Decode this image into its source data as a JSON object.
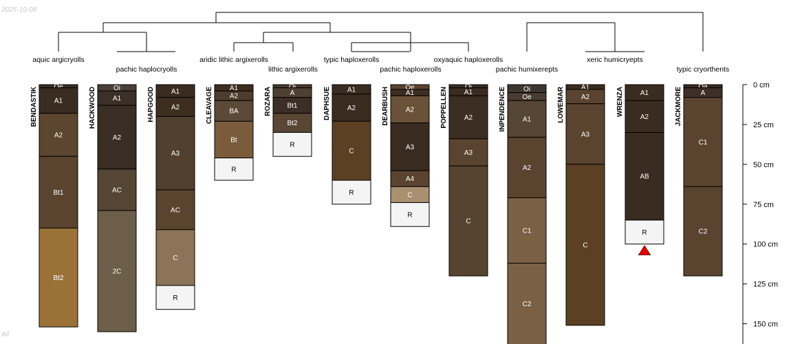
{
  "date_label": "2025-10-08",
  "corner_label": "All",
  "depth_axis": {
    "unit": "cm",
    "max_depth": 160,
    "ticks": [
      0,
      25,
      50,
      75,
      100,
      125,
      150
    ],
    "tick_labels": [
      "0 cm",
      "25 cm",
      "50 cm",
      "75 cm",
      "100 cm",
      "125 cm",
      "150 cm"
    ]
  },
  "taxa": [
    "aquic argicryolls",
    "pachic haplocryolls",
    "aridic lithic argixerolls",
    "lithic argixerolls",
    "typic haploxerolls",
    "pachic haploxerolls",
    "oxyaquic haploxerolls",
    "pachic humixerepts",
    "xeric humicryepts",
    "typic cryorthents"
  ],
  "profiles": [
    {
      "name": "BENDASTIK",
      "horizons": [
        {
          "name": "Oe",
          "top": 0,
          "bottom": 2,
          "color": "#3a2e24"
        },
        {
          "name": "A1",
          "top": 2,
          "bottom": 18,
          "color": "#3a2c20"
        },
        {
          "name": "A2",
          "top": 18,
          "bottom": 45,
          "color": "#5c4630"
        },
        {
          "name": "Bt1",
          "top": 45,
          "bottom": 90,
          "color": "#5a4430"
        },
        {
          "name": "Bt2",
          "top": 90,
          "bottom": 152,
          "color": "#9a7238"
        }
      ]
    },
    {
      "name": "HACKWOOD",
      "horizons": [
        {
          "name": "Oi",
          "top": 0,
          "bottom": 4,
          "color": "#4a4038"
        },
        {
          "name": "A1",
          "top": 4,
          "bottom": 13,
          "color": "#3c3028"
        },
        {
          "name": "A2",
          "top": 13,
          "bottom": 53,
          "color": "#3a2e24"
        },
        {
          "name": "AC",
          "top": 53,
          "bottom": 79,
          "color": "#554535"
        },
        {
          "name": "2C",
          "top": 79,
          "bottom": 155,
          "color": "#6c5e48"
        }
      ]
    },
    {
      "name": "HAPGOOD",
      "horizons": [
        {
          "name": "A1",
          "top": 0,
          "bottom": 8,
          "color": "#3a2c20"
        },
        {
          "name": "A2",
          "top": 8,
          "bottom": 20,
          "color": "#3e2e20"
        },
        {
          "name": "A3",
          "top": 20,
          "bottom": 66,
          "color": "#52402e"
        },
        {
          "name": "AC",
          "top": 66,
          "bottom": 91,
          "color": "#5a4430"
        },
        {
          "name": "C",
          "top": 91,
          "bottom": 126,
          "color": "#8c7458"
        },
        {
          "name": "R",
          "top": 126,
          "bottom": 141,
          "color": "#f4f4f4"
        }
      ]
    },
    {
      "name": "CLEAVAGE",
      "horizons": [
        {
          "name": "A1",
          "top": 0,
          "bottom": 4,
          "color": "#3e2e20"
        },
        {
          "name": "A2",
          "top": 4,
          "bottom": 10,
          "color": "#4e3c2c"
        },
        {
          "name": "BA",
          "top": 10,
          "bottom": 23,
          "color": "#5c4a38"
        },
        {
          "name": "Bt",
          "top": 23,
          "bottom": 46,
          "color": "#7a5c3c"
        },
        {
          "name": "R",
          "top": 46,
          "bottom": 60,
          "color": "#f4f4f4"
        }
      ]
    },
    {
      "name": "ROZARA",
      "horizons": [
        {
          "name": "Oi",
          "top": 0,
          "bottom": 2,
          "color": "#4a3c30"
        },
        {
          "name": "A",
          "top": 2,
          "bottom": 8,
          "color": "#4e4032"
        },
        {
          "name": "Bt1",
          "top": 8,
          "bottom": 18,
          "color": "#3a2e26"
        },
        {
          "name": "Bt2",
          "top": 18,
          "bottom": 30,
          "color": "#5a4634"
        },
        {
          "name": "R",
          "top": 30,
          "bottom": 45,
          "color": "#f4f4f4"
        }
      ]
    },
    {
      "name": "DAPHSUE",
      "horizons": [
        {
          "name": "A1",
          "top": 0,
          "bottom": 6,
          "color": "#3a2c20"
        },
        {
          "name": "A2",
          "top": 6,
          "bottom": 23,
          "color": "#3a2c20"
        },
        {
          "name": "C",
          "top": 23,
          "bottom": 60,
          "color": "#5c4024"
        },
        {
          "name": "R",
          "top": 60,
          "bottom": 75,
          "color": "#f4f4f4"
        }
      ]
    },
    {
      "name": "DEARBUSH",
      "horizons": [
        {
          "name": "Oe",
          "top": 0,
          "bottom": 3,
          "color": "#5a4430"
        },
        {
          "name": "A1",
          "top": 3,
          "bottom": 7,
          "color": "#3e2e22"
        },
        {
          "name": "A2",
          "top": 7,
          "bottom": 24,
          "color": "#6a5238"
        },
        {
          "name": "A3",
          "top": 24,
          "bottom": 54,
          "color": "#3a2c20"
        },
        {
          "name": "A4",
          "top": 54,
          "bottom": 64,
          "color": "#5a4430"
        },
        {
          "name": "C",
          "top": 64,
          "bottom": 74,
          "color": "#a89070"
        },
        {
          "name": "R",
          "top": 74,
          "bottom": 89,
          "color": "#f4f4f4"
        }
      ]
    },
    {
      "name": "POPPELLEN",
      "horizons": [
        {
          "name": "Oi",
          "top": 0,
          "bottom": 2,
          "color": "#3a2e24"
        },
        {
          "name": "A1",
          "top": 2,
          "bottom": 7,
          "color": "#3a2c20"
        },
        {
          "name": "A2",
          "top": 7,
          "bottom": 34,
          "color": "#3c2e22"
        },
        {
          "name": "A3",
          "top": 34,
          "bottom": 51,
          "color": "#5a4430"
        },
        {
          "name": "C",
          "top": 51,
          "bottom": 120,
          "color": "#564430"
        }
      ]
    },
    {
      "name": "INPENDENCE",
      "horizons": [
        {
          "name": "Oi",
          "top": 0,
          "bottom": 5,
          "color": "#3e3630"
        },
        {
          "name": "Oe",
          "top": 5,
          "bottom": 10,
          "color": "#4a3c32"
        },
        {
          "name": "A1",
          "top": 10,
          "bottom": 33,
          "color": "#554535"
        },
        {
          "name": "A2",
          "top": 33,
          "bottom": 71,
          "color": "#5a4430"
        },
        {
          "name": "C1",
          "top": 71,
          "bottom": 112,
          "color": "#7a6045"
        },
        {
          "name": "C2",
          "top": 112,
          "bottom": 163,
          "color": "#7a6045"
        }
      ]
    },
    {
      "name": "LOWEMAR",
      "horizons": [
        {
          "name": "A1",
          "top": 0,
          "bottom": 3,
          "color": "#3a2c20"
        },
        {
          "name": "A2",
          "top": 3,
          "bottom": 12,
          "color": "#5a4430"
        },
        {
          "name": "A3",
          "top": 12,
          "bottom": 50,
          "color": "#5a4430"
        },
        {
          "name": "C",
          "top": 50,
          "bottom": 151,
          "color": "#5c4024"
        }
      ]
    },
    {
      "name": "WRENZA",
      "horizons": [
        {
          "name": "A1",
          "top": 0,
          "bottom": 10,
          "color": "#3a2c20"
        },
        {
          "name": "A2",
          "top": 10,
          "bottom": 30,
          "color": "#3a2c20"
        },
        {
          "name": "AB",
          "top": 30,
          "bottom": 85,
          "color": "#3a2c20"
        },
        {
          "name": "R",
          "top": 85,
          "bottom": 100,
          "color": "#f4f4f4"
        }
      ],
      "marker": {
        "depth": 100,
        "color": "#e00000"
      }
    },
    {
      "name": "JACKMORE",
      "horizons": [
        {
          "name": "Oa",
          "top": 0,
          "bottom": 2,
          "color": "#3a2c20"
        },
        {
          "name": "A",
          "top": 2,
          "bottom": 8,
          "color": "#3e3028"
        },
        {
          "name": "C1",
          "top": 8,
          "bottom": 64,
          "color": "#5a4430"
        },
        {
          "name": "C2",
          "top": 64,
          "bottom": 120,
          "color": "#5a4430"
        }
      ]
    }
  ]
}
